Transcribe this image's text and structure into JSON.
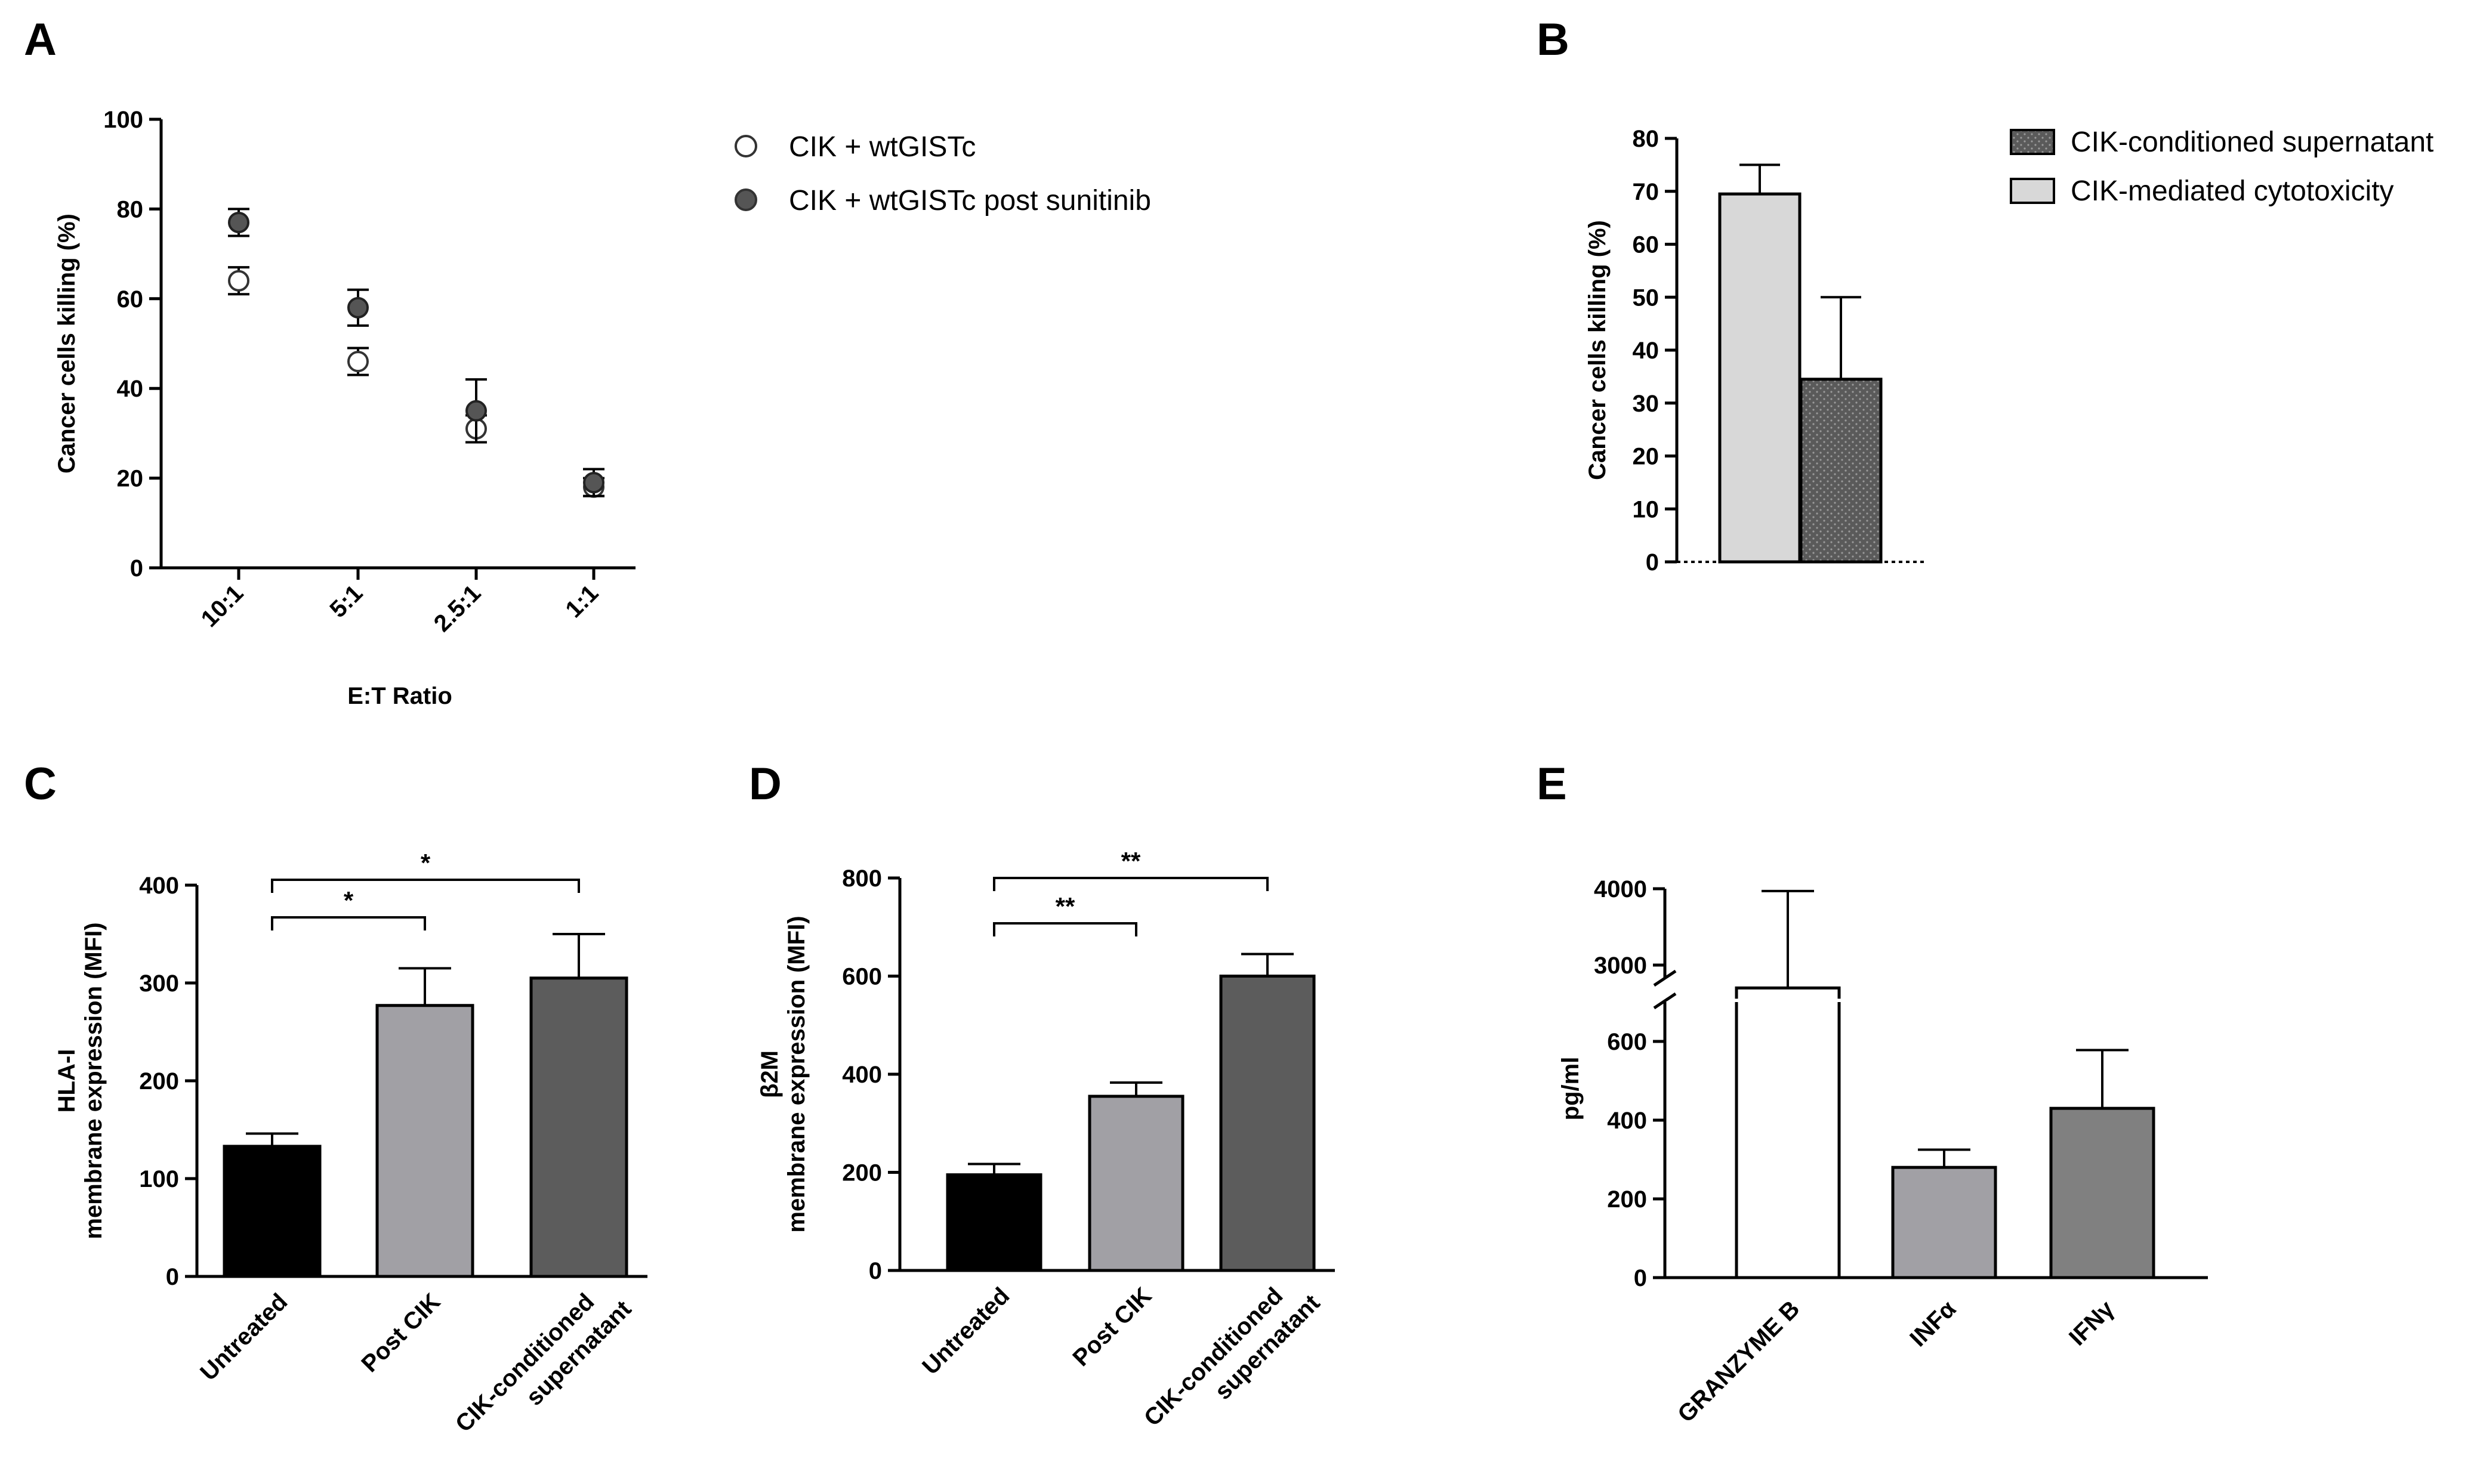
{
  "panel_labels": [
    "A",
    "B",
    "C",
    "D",
    "E"
  ],
  "chart_data": [
    {
      "panel": "A",
      "type": "scatter",
      "title": "",
      "xlabel": "E:T Ratio",
      "ylabel": "Cancer cells killing (%)",
      "categories": [
        "10:1",
        "5:1",
        "2.5:1",
        "1:1"
      ],
      "ylim": [
        0,
        100
      ],
      "yticks": [
        "0",
        "20",
        "40",
        "60",
        "80",
        "100"
      ],
      "series": [
        {
          "name": "CIK + wtGISTc",
          "marker": "open",
          "color": "#ffffff",
          "values": [
            64,
            46,
            31,
            18
          ],
          "errors": [
            3,
            3,
            3,
            2
          ]
        },
        {
          "name": "CIK + wtGISTc post sunitinib",
          "marker": "filled",
          "color": "#555555",
          "values": [
            77,
            58,
            35,
            19
          ],
          "errors": [
            3,
            4,
            7,
            3
          ]
        }
      ]
    },
    {
      "panel": "B",
      "type": "bar",
      "title": "",
      "ylabel": "Cancer cells killing (%)",
      "ylim": [
        0,
        80
      ],
      "yticks": [
        "0",
        "10",
        "20",
        "30",
        "40",
        "50",
        "60",
        "70",
        "80"
      ],
      "categories": [
        "CIK-mediated cytotoxicity",
        "CIK-conditioned supernatant"
      ],
      "values": [
        69.5,
        34.5
      ],
      "errors": [
        5.5,
        15.5
      ],
      "legend": [
        "CIK-conditioned supernatant",
        "CIK-mediated cytotoxicity"
      ],
      "colors": [
        "#d8d8d8",
        "#5a5a5a"
      ]
    },
    {
      "panel": "C",
      "type": "bar",
      "title": "",
      "ylabel_line1": "HLA-I",
      "ylabel_line2": "membrane expression (MFI)",
      "ylim": [
        0,
        400
      ],
      "yticks": [
        "0",
        "100",
        "200",
        "300",
        "400"
      ],
      "categories": [
        "Untreated",
        "Post CIK",
        "CIK-conditioned supernatant"
      ],
      "category_lines": [
        [
          "Untreated"
        ],
        [
          "Post CIK"
        ],
        [
          "CIK-conditioned",
          "supernatant"
        ]
      ],
      "values": [
        133,
        277,
        305
      ],
      "errors": [
        13,
        38,
        45
      ],
      "colors": [
        "#000000",
        "#a1a0a5",
        "#5c5c5c"
      ],
      "significance": [
        {
          "from": 0,
          "to": 1,
          "label": "*"
        },
        {
          "from": 0,
          "to": 2,
          "label": "*"
        }
      ]
    },
    {
      "panel": "D",
      "type": "bar",
      "title": "",
      "ylabel_line1": "β2M",
      "ylabel_line2": "membrane expression (MFI)",
      "ylim": [
        0,
        800
      ],
      "yticks": [
        "0",
        "200",
        "400",
        "600",
        "800"
      ],
      "categories": [
        "Untreated",
        "Post CIK",
        "CIK-conditioned supernatant"
      ],
      "category_lines": [
        [
          "Untreated"
        ],
        [
          "Post CIK"
        ],
        [
          "CIK-conditioned",
          "supernatant"
        ]
      ],
      "values": [
        195,
        355,
        600
      ],
      "errors": [
        22,
        28,
        45
      ],
      "colors": [
        "#000000",
        "#a1a0a5",
        "#5c5c5c"
      ],
      "significance": [
        {
          "from": 0,
          "to": 1,
          "label": "**"
        },
        {
          "from": 0,
          "to": 2,
          "label": "**"
        }
      ]
    },
    {
      "panel": "E",
      "type": "bar",
      "title": "",
      "ylabel": "pg/ml",
      "broken_axis": {
        "lower": [
          0,
          700
        ],
        "upper": [
          2500,
          4000
        ]
      },
      "yticks_lower": [
        "0",
        "200",
        "400",
        "600"
      ],
      "yticks_upper": [
        "3000",
        "4000"
      ],
      "categories": [
        "GRANZYME B",
        "INFα",
        "IFNγ"
      ],
      "values": [
        2700,
        280,
        430
      ],
      "errors": [
        1270,
        45,
        148
      ],
      "colors": [
        "#ffffff",
        "#a1a0a5",
        "#808080"
      ]
    }
  ]
}
